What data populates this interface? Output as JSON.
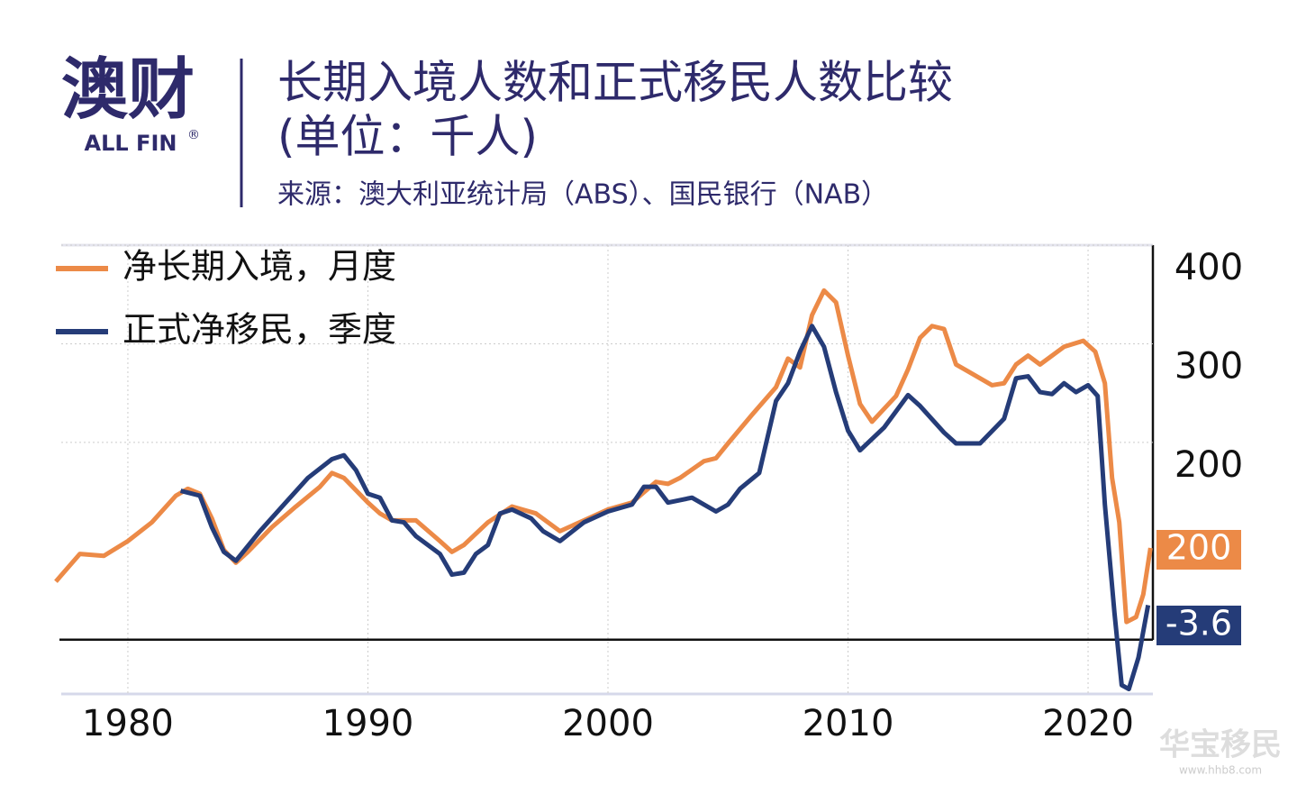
{
  "header": {
    "logo": "澳财",
    "logo_sub": "ALL FIN",
    "logo_mark": "®",
    "title_line1": "长期入境人数和正式移民人数比较",
    "title_line2": "(单位：千人)",
    "source": "来源：澳大利亚统计局（ABS）、国民银行（NAB）"
  },
  "watermark": {
    "text": "华宝移民",
    "url": "www.hhb8.com"
  },
  "chart_data": {
    "type": "line",
    "xlim": [
      1977,
      2022.7
    ],
    "xticks": [
      1980,
      1990,
      2000,
      2010,
      2020
    ],
    "ylim": [
      -55,
      400
    ],
    "yticks": [
      200,
      300,
      400
    ],
    "grid": true,
    "legend": "top-left",
    "annotations": [
      "200",
      "-3.6"
    ],
    "series": [
      {
        "name": "净长期入境，月度",
        "color": "#ec8a47",
        "x": [
          1977,
          1978,
          1979,
          1980,
          1981,
          1982,
          1982.5,
          1983,
          1983.5,
          1984,
          1984.5,
          1985,
          1986,
          1987,
          1988,
          1988.5,
          1989,
          1990,
          1990.5,
          1991,
          1992,
          1993,
          1993.5,
          1994,
          1995,
          1996,
          1997,
          1998,
          1999,
          2000,
          2001,
          2002,
          2002.5,
          2003,
          2004,
          2004.5,
          2005,
          2006,
          2007,
          2007.5,
          2008,
          2008.5,
          2009,
          2009.5,
          2010,
          2010.5,
          2011,
          2012,
          2012.5,
          2013,
          2013.5,
          2014,
          2014.5,
          2015,
          2016,
          2016.5,
          2017,
          2017.5,
          2018,
          2019,
          2019.8,
          2020.3,
          2020.7,
          2021,
          2021.3,
          2021.6,
          2022,
          2022.3,
          2022.6
        ],
        "values": [
          59,
          87,
          85,
          100,
          119,
          146,
          153,
          148,
          123,
          91,
          78,
          89,
          114,
          135,
          155,
          169,
          164,
          139,
          128,
          121,
          121,
          100,
          89,
          96,
          119,
          135,
          128,
          110,
          121,
          132,
          139,
          160,
          158,
          164,
          181,
          184,
          199,
          228,
          256,
          285,
          276,
          329,
          354,
          342,
          288,
          239,
          221,
          247,
          274,
          306,
          318,
          315,
          279,
          272,
          258,
          260,
          279,
          288,
          279,
          297,
          303,
          292,
          260,
          164,
          119,
          18,
          23,
          46,
          93
        ]
      },
      {
        "name": "正式净移民，季度",
        "color": "#253c78",
        "x": [
          1982.2,
          1983,
          1983.5,
          1984,
          1984.5,
          1985.5,
          1986.5,
          1987.5,
          1988.5,
          1989,
          1989.5,
          1990,
          1990.5,
          1991,
          1991.5,
          1992,
          1993,
          1993.5,
          1994,
          1994.5,
          1995,
          1995.5,
          1996,
          1996.8,
          1997.3,
          1998,
          1999,
          2000,
          2001,
          2001.5,
          2002,
          2002.5,
          2003.5,
          2004.5,
          2005,
          2005.5,
          2006.3,
          2007,
          2007.5,
          2008,
          2008.5,
          2009,
          2009.5,
          2010,
          2010.5,
          2011.5,
          2012.5,
          2013,
          2014,
          2014.5,
          2015.5,
          2016.5,
          2017,
          2017.5,
          2018,
          2018.5,
          2019,
          2019.5,
          2020,
          2020.4,
          2020.7,
          2021.1,
          2021.4,
          2021.7,
          2022.1,
          2022.5
        ],
        "values": [
          151,
          146,
          114,
          89,
          80,
          110,
          137,
          164,
          183,
          187,
          172,
          148,
          144,
          121,
          119,
          105,
          87,
          66,
          68,
          87,
          96,
          128,
          132,
          123,
          110,
          100,
          119,
          130,
          137,
          155,
          155,
          139,
          144,
          130,
          137,
          153,
          169,
          242,
          260,
          292,
          318,
          297,
          251,
          212,
          192,
          215,
          248,
          237,
          210,
          199,
          199,
          224,
          265,
          267,
          251,
          249,
          260,
          251,
          258,
          247,
          137,
          27,
          -46,
          -50,
          -18,
          35
        ]
      }
    ]
  }
}
